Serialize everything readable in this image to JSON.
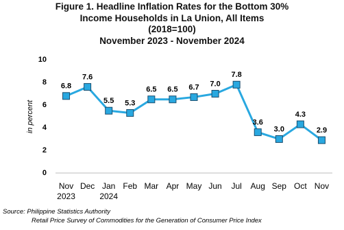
{
  "chart_data": {
    "type": "line",
    "title": "Figure 1. Headline Inflation Rates for the Bottom 30%\nIncome Households  in La Union, All Items\n(2018=100)\nNovember 2023 - November 2024",
    "y_label": "in percent",
    "categories": [
      "Nov\n2023",
      "Dec",
      "Jan\n2024",
      "Feb",
      "Mar",
      "Apr",
      "May",
      "Jun",
      "Jul",
      "Aug",
      "Sep",
      "Oct",
      "Nov"
    ],
    "values": [
      6.8,
      7.6,
      5.5,
      5.3,
      6.5,
      6.5,
      6.7,
      7.0,
      7.8,
      3.6,
      3.0,
      4.3,
      2.9
    ],
    "value_labels": [
      "6.8",
      "7.6",
      "5.5",
      "5.3",
      "6.5",
      "6.5",
      "6.7",
      "7.0",
      "7.8",
      "3.6",
      "3.0",
      "4.3",
      "2.9"
    ],
    "color": "#29a8e0",
    "ylim": [
      0,
      10
    ],
    "yticks": [
      0,
      2,
      4,
      6,
      8,
      10
    ],
    "grid": false,
    "source": [
      "Source: Philippine Statistics Authority",
      "Retail Price Survey of Commodities for the Generation of Consumer Price Index"
    ]
  }
}
